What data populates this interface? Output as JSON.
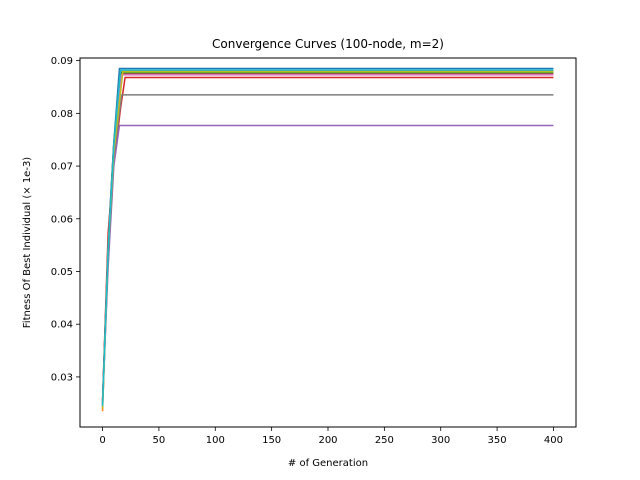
{
  "chart_data": {
    "type": "line",
    "title": "Convergence Curves (100-node, m=2)",
    "xlabel": "# of Generation",
    "ylabel": "Fitness Of Best Individual (× 1e-3)",
    "xlim": [
      -20,
      420
    ],
    "ylim": [
      0.0205,
      0.0905
    ],
    "xticks": [
      0,
      50,
      100,
      150,
      200,
      250,
      300,
      350,
      400
    ],
    "yticks": [
      0.03,
      0.04,
      0.05,
      0.06,
      0.07,
      0.08,
      0.09
    ],
    "grid": false,
    "series": [
      {
        "color": "#1f77b4",
        "points": [
          [
            0,
            0.025
          ],
          [
            5,
            0.056
          ],
          [
            10,
            0.0745
          ],
          [
            15,
            0.0885
          ],
          [
            400,
            0.0885
          ]
        ]
      },
      {
        "color": "#ff7f0e",
        "points": [
          [
            0,
            0.0235
          ],
          [
            5,
            0.054
          ],
          [
            10,
            0.074
          ],
          [
            16,
            0.0881
          ],
          [
            400,
            0.0881
          ]
        ]
      },
      {
        "color": "#2ca02c",
        "points": [
          [
            0,
            0.0245
          ],
          [
            5,
            0.0555
          ],
          [
            10,
            0.074
          ],
          [
            16,
            0.0878
          ],
          [
            400,
            0.0878
          ]
        ]
      },
      {
        "color": "#d62728",
        "points": [
          [
            0,
            0.0255
          ],
          [
            5,
            0.0575
          ],
          [
            10,
            0.0705
          ],
          [
            16,
            0.081
          ],
          [
            20,
            0.0868
          ],
          [
            400,
            0.0868
          ]
        ]
      },
      {
        "color": "#9467bd",
        "points": [
          [
            0,
            0.025
          ],
          [
            5,
            0.051
          ],
          [
            10,
            0.07
          ],
          [
            15,
            0.0777
          ],
          [
            400,
            0.0777
          ]
        ]
      },
      {
        "color": "#8c564b",
        "points": [
          [
            0,
            0.0255
          ],
          [
            5,
            0.055
          ],
          [
            10,
            0.0745
          ],
          [
            17,
            0.0875
          ],
          [
            400,
            0.0875
          ]
        ]
      },
      {
        "color": "#e377c2",
        "points": [
          [
            0,
            0.0245
          ],
          [
            5,
            0.054
          ],
          [
            10,
            0.0735
          ],
          [
            17,
            0.0873
          ],
          [
            400,
            0.0873
          ]
        ]
      },
      {
        "color": "#7f7f7f",
        "points": [
          [
            0,
            0.024
          ],
          [
            5,
            0.053
          ],
          [
            10,
            0.072
          ],
          [
            17,
            0.0835
          ],
          [
            400,
            0.0835
          ]
        ]
      },
      {
        "color": "#bcbd22",
        "points": [
          [
            0,
            0.024
          ],
          [
            5,
            0.0545
          ],
          [
            10,
            0.0725
          ],
          [
            18,
            0.0879
          ],
          [
            400,
            0.0879
          ]
        ]
      },
      {
        "color": "#17becf",
        "points": [
          [
            0,
            0.0245
          ],
          [
            5,
            0.0545
          ],
          [
            10,
            0.074
          ],
          [
            16,
            0.0882
          ],
          [
            400,
            0.0882
          ]
        ]
      }
    ]
  }
}
